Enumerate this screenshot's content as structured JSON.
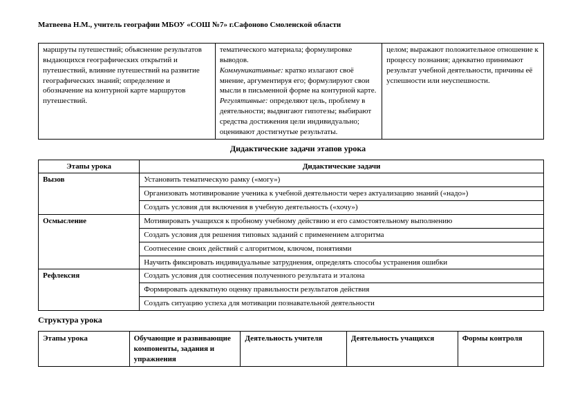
{
  "header": "Матвеева Н.М., учитель географии МБОУ «СОШ №7» г.Сафоново Смоленской области",
  "table1": {
    "cells": [
      {
        "text": "маршруты путешествий; объяснение результатов выдающихся географических открытий и путешествий, влияние путешествий на развитие географических знаний; определение и обозначение на контурной карте маршрутов путешествий."
      },
      {
        "segments": [
          {
            "t": "тематического материала; формулировке выводов.",
            "i": false,
            "br": true
          },
          {
            "t": "Коммуникативные:",
            "i": true,
            "br": false
          },
          {
            "t": " кратко излагают своё мнение, аргументируя его; формулируют свои мысли в письменной форме на контурной карте.",
            "i": false,
            "br": true
          },
          {
            "t": "Регулятивные:",
            "i": true,
            "br": false
          },
          {
            "t": " определяют цель, проблему в деятельности; выдвигают гипотезы; выбирают средства достижения цели индивидуально; оценивают достигнутые результаты.",
            "i": false,
            "br": false
          }
        ]
      },
      {
        "text": "целом; выражают положительное отношение к процессу познания; адекватно принимают результат учебной деятельности, причины её успешности или неуспешности."
      }
    ]
  },
  "section1_title": "Дидактические задачи этапов урока",
  "table2": {
    "headers": [
      "Этапы урока",
      "Дидактические задачи"
    ],
    "rows": [
      {
        "stage": "Вызов",
        "tasks": [
          "Установить тематическую рамку («могу»)",
          "Организовать мотивирование ученика к учебной деятельности через актуализацию знаний («надо»)",
          "Создать условия для включения в учебную деятельность («хочу»)"
        ]
      },
      {
        "stage": "Осмысление",
        "tasks": [
          "Мотивировать учащихся к пробному учебному действию и его самостоятельному выполнению",
          "Создать условия для решения типовых заданий с применением алгоритма",
          "Соотнесение своих действий с алгоритмом, ключом, понятиями",
          "Научить фиксировать индивидуальные затруднения, определять способы устранения ошибки"
        ]
      },
      {
        "stage": "Рефлексия",
        "tasks": [
          "Создать условия для соотнесения полученного результата  и эталона",
          "Формировать адекватную оценку правильности результатов действия",
          "Создать  ситуацию успеха для мотивации познавательной деятельности"
        ]
      }
    ]
  },
  "section2_title": "Структура  урока",
  "table3": {
    "headers": [
      "Этапы урока",
      "Обучающие и развивающие компоненты, задания и упражнения",
      "Деятельность учителя",
      "Деятельность учащихся",
      "Формы контроля"
    ]
  }
}
